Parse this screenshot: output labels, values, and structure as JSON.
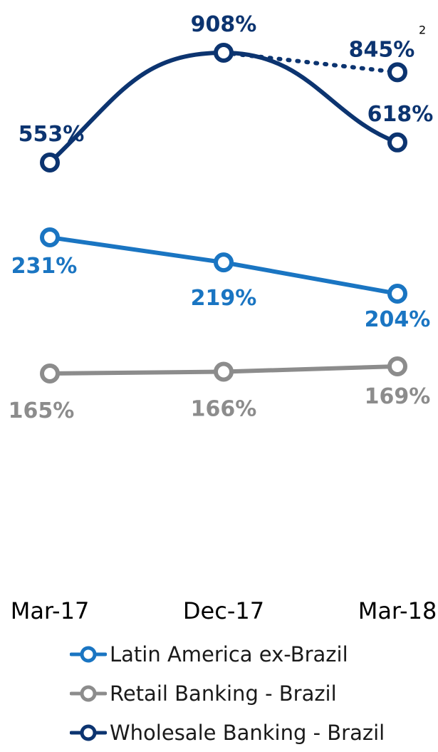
{
  "chart_data": {
    "type": "line",
    "categories": [
      "Mar-17",
      "Dec-17",
      "Mar-18"
    ],
    "series": [
      {
        "name": "Latin America ex-Brazil",
        "color": "#1a75c2",
        "values": [
          231,
          219,
          204
        ],
        "labels": [
          "231%",
          "219%",
          "204%"
        ]
      },
      {
        "name": "Retail Banking - Brazil",
        "color": "#8c8c8c",
        "values": [
          165,
          166,
          169
        ],
        "labels": [
          "165%",
          "166%",
          "169%"
        ]
      },
      {
        "name": "Wholesale Banking - Brazil",
        "color": "#0c3470",
        "values": [
          553,
          908,
          618
        ],
        "labels": [
          "553%",
          "908%",
          "618%"
        ],
        "alternate_end": {
          "value": 845,
          "label": "845%",
          "footnote": "2",
          "style": "dotted"
        }
      }
    ],
    "grid": false,
    "legend_position": "bottom"
  }
}
